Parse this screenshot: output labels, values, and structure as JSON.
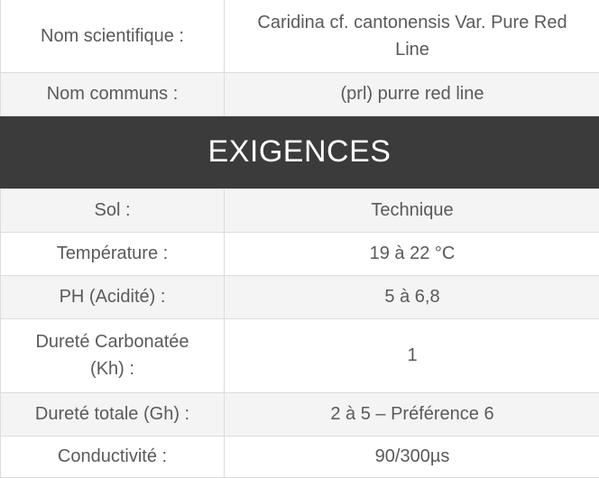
{
  "identity_rows": [
    {
      "label": "Nom scientifique :",
      "value": "Caridina cf. cantonensis Var. Pure Red Line"
    },
    {
      "label": "Nom communs :",
      "value": "(prl) purre red line"
    }
  ],
  "section_title": "EXIGENCES",
  "requirement_rows": [
    {
      "label": "Sol :",
      "value": "Technique"
    },
    {
      "label": "Température :",
      "value": "19 à 22 °C"
    },
    {
      "label": "PH (Acidité) :",
      "value": "5 à 6,8"
    },
    {
      "label": "Dureté Carbonatée (Kh) :",
      "value": "1"
    },
    {
      "label": "Dureté totale (Gh) :",
      "value": "2 à 5 – Préférence 6"
    },
    {
      "label": "Conductivité :",
      "value": "90/300µs"
    }
  ]
}
